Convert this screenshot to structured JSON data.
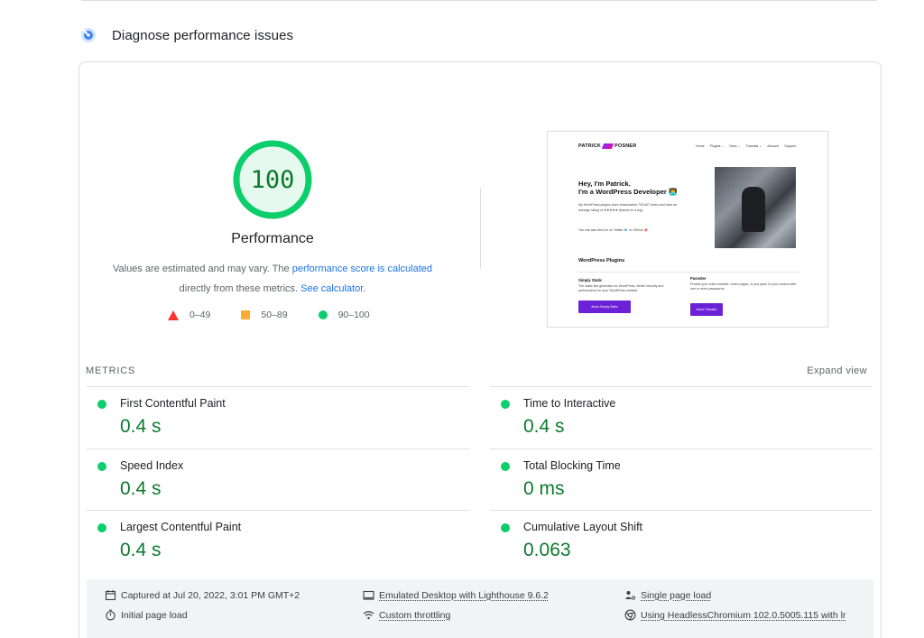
{
  "section": {
    "title": "Diagnose performance issues",
    "icon": "lighthouse-icon"
  },
  "score": {
    "value": "100",
    "label": "Performance",
    "fraction": 1.0,
    "color": "#0cce6b"
  },
  "description": {
    "lead": "Values are estimated and may vary. The ",
    "link_calc": "performance score is calculated",
    "mid": "directly from these metrics. ",
    "link_calculator": "See calculator."
  },
  "legend": [
    {
      "icon": "triangle-red-icon",
      "label": "0–49",
      "color": "#ff3333"
    },
    {
      "icon": "square-orange-icon",
      "label": "50–89",
      "color": "#ffaa33"
    },
    {
      "icon": "circle-green-icon",
      "label": "90–100",
      "color": "#0cce6b"
    }
  ],
  "screenshot": {
    "logo": "PATRICK",
    "logo_2": "POSNER",
    "nav": [
      "Home",
      "Plugins ⌄",
      "Docs ⌄",
      "Tutorials ⌄",
      "Account",
      "Support"
    ],
    "hero_line1": "Hey, I'm Patrick.",
    "hero_line2": "I'm a WordPress Developer 👨‍💻",
    "text1": "My WordPress plugins were downloaded 743,647 times and have an average rating of ★★★★★ (based on a.org)",
    "text2": "You can also find me on Twitter 🐦 or GitHub 🐙",
    "section_title": "WordPress Plugins",
    "col1_title": "Simply Static",
    "col1_text": "The static site generator for WordPress. Better security and performance for your WordPress website.",
    "col2_title": "Passster",
    "col2_text": "Protect your entire website, entire pages, or just parts of your content with one or more passwords.",
    "button1": "About Simply Static",
    "button2": "About Passster"
  },
  "metrics": {
    "heading": "METRICS",
    "expand": "Expand view",
    "items": [
      {
        "title": "First Contentful Paint",
        "value": "0.4 s"
      },
      {
        "title": "Time to Interactive",
        "value": "0.4 s"
      },
      {
        "title": "Speed Index",
        "value": "0.4 s"
      },
      {
        "title": "Total Blocking Time",
        "value": "0 ms"
      },
      {
        "title": "Largest Contentful Paint",
        "value": "0.4 s"
      },
      {
        "title": "Cumulative Layout Shift",
        "value": "0.063"
      }
    ]
  },
  "footer": {
    "captured": {
      "icon": "calendar-icon",
      "text": "Captured at Jul 20, 2022, 3:01 PM GMT+2"
    },
    "initial": {
      "icon": "timer-icon",
      "text": "Initial page load"
    },
    "emulated": {
      "icon": "desktop-icon",
      "text": "Emulated Desktop with Lighthouse 9.6.2"
    },
    "throttling": {
      "icon": "wifi-icon",
      "text": "Custom throttling"
    },
    "single": {
      "icon": "person-icon",
      "text": "Single page load"
    },
    "browser": {
      "icon": "chromium-icon",
      "text": "Using HeadlessChromium 102.0.5005.115 with lr"
    }
  }
}
